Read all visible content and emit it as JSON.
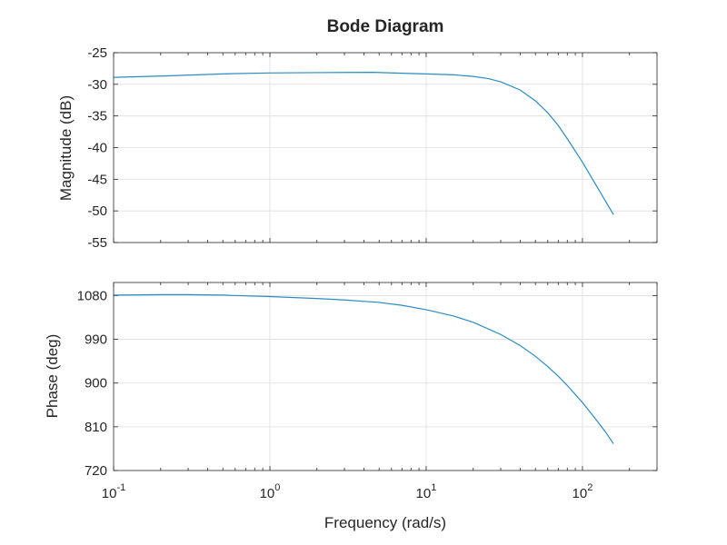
{
  "chart_data": {
    "type": "line",
    "title": "Bode Diagram",
    "xlabel": "Frequency (rad/s)",
    "xscale": "log",
    "xlim": [
      0.1,
      300
    ],
    "x_ticks": [
      {
        "value": 0.1,
        "base": "10",
        "exp": "-1"
      },
      {
        "value": 1,
        "base": "10",
        "exp": "0"
      },
      {
        "value": 10,
        "base": "10",
        "exp": "1"
      },
      {
        "value": 100,
        "base": "10",
        "exp": "2"
      }
    ],
    "grid": true,
    "line_color": "#2b8cc4",
    "panels": [
      {
        "name": "magnitude",
        "ylabel": "Magnitude (dB)",
        "ylim": [
          -55,
          -25
        ],
        "yticks": [
          -25,
          -30,
          -35,
          -40,
          -45,
          -50,
          -55
        ],
        "ytick_labels": [
          "-25",
          "-30",
          "-35",
          "-40",
          "-45",
          "-50",
          "-55"
        ],
        "series": {
          "name": "Magnitude",
          "x": [
            0.1,
            0.2,
            0.5,
            1,
            2,
            4.6,
            7,
            10,
            15,
            20,
            25,
            30,
            40,
            50,
            60,
            70,
            80,
            100,
            120,
            140,
            158
          ],
          "y": [
            -28.9,
            -28.7,
            -28.35,
            -28.2,
            -28.15,
            -28.1,
            -28.25,
            -28.35,
            -28.5,
            -28.75,
            -29.1,
            -29.6,
            -30.9,
            -32.6,
            -34.5,
            -36.5,
            -38.6,
            -42.3,
            -45.6,
            -48.4,
            -50.6
          ]
        }
      },
      {
        "name": "phase",
        "ylabel": "Phase (deg)",
        "ylim": [
          720,
          1107
        ],
        "yticks": [
          1080,
          990,
          900,
          810,
          720
        ],
        "ytick_labels": [
          "1080",
          "990",
          "900",
          "810",
          "720"
        ],
        "series": {
          "name": "Phase",
          "x": [
            0.1,
            0.2,
            0.3,
            0.5,
            1,
            2,
            3,
            5,
            7,
            10,
            15,
            20,
            30,
            40,
            50,
            60,
            70,
            80,
            100,
            120,
            140,
            158
          ],
          "y": [
            1081,
            1082,
            1082,
            1081,
            1078,
            1074,
            1071,
            1066,
            1060,
            1051,
            1038,
            1025,
            1000,
            977,
            955,
            934,
            914,
            895,
            860,
            828,
            800,
            775
          ]
        }
      }
    ]
  }
}
